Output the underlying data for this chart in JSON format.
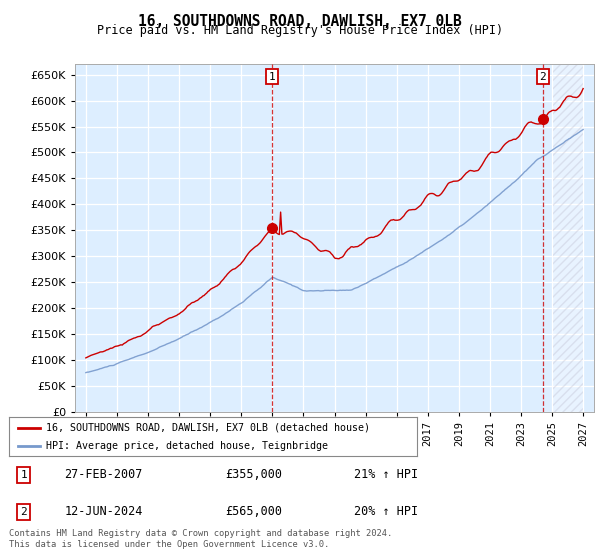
{
  "title": "16, SOUTHDOWNS ROAD, DAWLISH, EX7 0LB",
  "subtitle": "Price paid vs. HM Land Registry's House Price Index (HPI)",
  "red_label": "16, SOUTHDOWNS ROAD, DAWLISH, EX7 0LB (detached house)",
  "blue_label": "HPI: Average price, detached house, Teignbridge",
  "annotation1_date": "27-FEB-2007",
  "annotation1_price": "£355,000",
  "annotation1_hpi": "21% ↑ HPI",
  "annotation2_date": "12-JUN-2024",
  "annotation2_price": "£565,000",
  "annotation2_hpi": "20% ↑ HPI",
  "footer": "Contains HM Land Registry data © Crown copyright and database right 2024.\nThis data is licensed under the Open Government Licence v3.0.",
  "ylim": [
    0,
    670000
  ],
  "yticks": [
    0,
    50000,
    100000,
    150000,
    200000,
    250000,
    300000,
    350000,
    400000,
    450000,
    500000,
    550000,
    600000,
    650000
  ],
  "background_color": "#ddeeff",
  "red_color": "#cc0000",
  "blue_color": "#7799cc",
  "hatch_color": "#ddcccc"
}
